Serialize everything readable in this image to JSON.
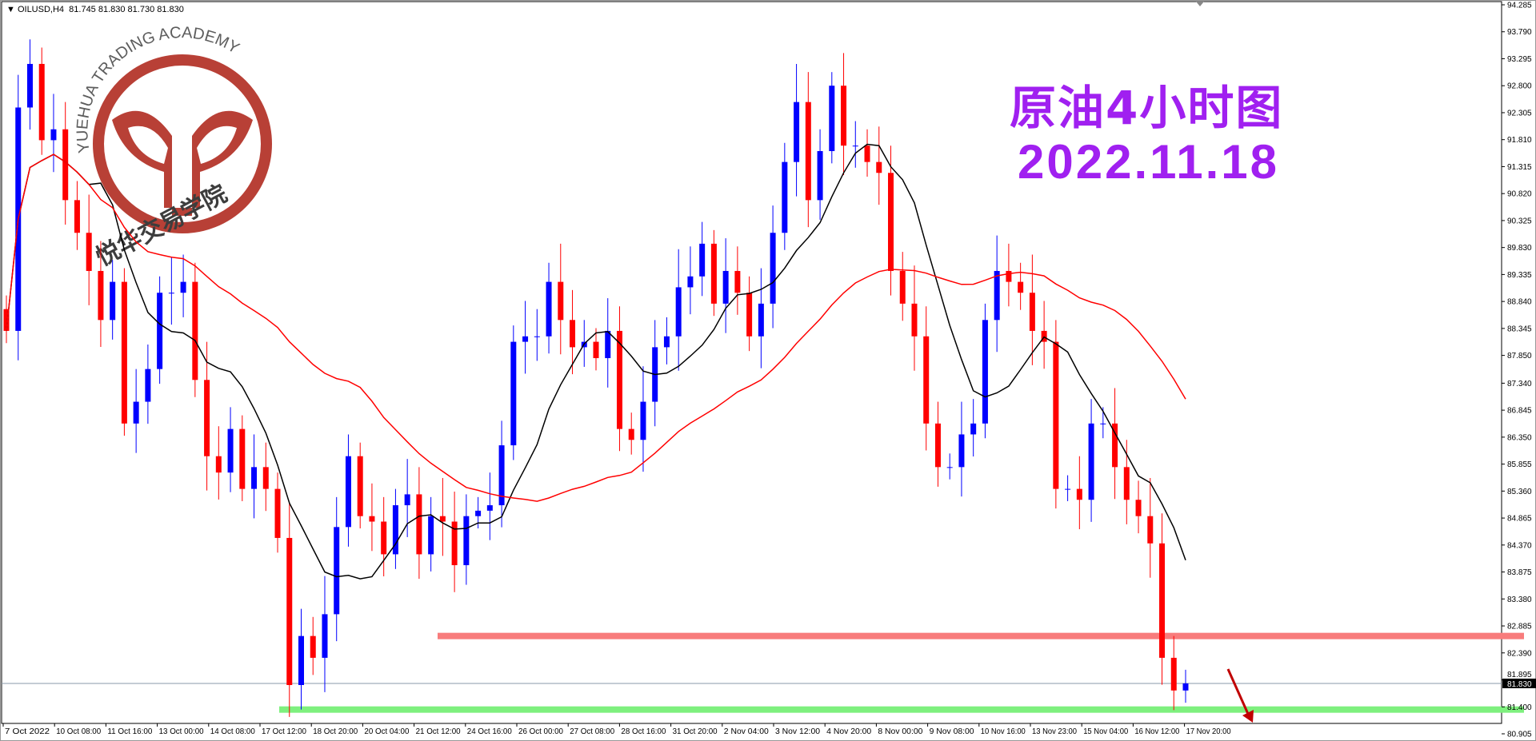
{
  "header": {
    "symbol": "OILUSD,H4",
    "ohlc": "81.745 81.830 81.730 81.830"
  },
  "overlay": {
    "title": "原油4小时图",
    "date": "2022.11.18"
  },
  "logo": {
    "text_en": "YUEHUA TRADING ACADEMY",
    "text_cn": "悦华交易学院",
    "color": "#b5362c"
  },
  "colors": {
    "bull": "#0000ff",
    "bear": "#ff0000",
    "fast_ma": "#000000",
    "slow_ma": "#ff0000",
    "resistance": "#f87c7c",
    "support": "#7ef07e",
    "accent": "#a020f0"
  },
  "chart_data": {
    "type": "candlestick",
    "symbol": "OILUSD",
    "timeframe": "H4",
    "ylim": [
      80.905,
      94.285
    ],
    "y_ticks": [
      "94.285",
      "93.790",
      "93.295",
      "92.800",
      "92.305",
      "91.810",
      "91.315",
      "90.820",
      "90.325",
      "89.830",
      "89.335",
      "88.840",
      "88.345",
      "87.850",
      "87.340",
      "86.845",
      "86.350",
      "85.855",
      "85.360",
      "84.865",
      "84.370",
      "83.875",
      "83.380",
      "82.885",
      "82.390",
      "81.895",
      "81.400",
      "80.905"
    ],
    "x_ticks": [
      "7 Oct 2022",
      "10 Oct 08:00",
      "11 Oct 16:00",
      "13 Oct 00:00",
      "14 Oct 08:00",
      "17 Oct 12:00",
      "18 Oct 20:00",
      "20 Oct 04:00",
      "21 Oct 12:00",
      "24 Oct 16:00",
      "26 Oct 00:00",
      "27 Oct 08:00",
      "28 Oct 16:00",
      "31 Oct 20:00",
      "2 Nov 04:00",
      "3 Nov 12:00",
      "4 Nov 20:00",
      "8 Nov 00:00",
      "9 Nov 08:00",
      "10 Nov 16:00",
      "13 Nov 23:00",
      "15 Nov 04:00",
      "16 Nov 12:00",
      "17 Nov 20:00"
    ],
    "closes": [
      88.3,
      92.4,
      93.2,
      91.8,
      92.0,
      90.7,
      90.1,
      89.4,
      88.5,
      89.2,
      86.6,
      87.0,
      87.6,
      89.0,
      89.0,
      89.2,
      87.4,
      86.0,
      85.7,
      86.5,
      85.4,
      85.8,
      85.4,
      84.5,
      81.8,
      82.7,
      82.3,
      83.1,
      84.7,
      86.0,
      84.9,
      84.8,
      84.2,
      85.1,
      85.3,
      84.2,
      84.9,
      84.8,
      84.0,
      84.9,
      85.0,
      85.1,
      86.2,
      88.1,
      88.2,
      88.2,
      89.2,
      88.5,
      88.0,
      88.1,
      87.8,
      88.3,
      86.5,
      86.3,
      87.0,
      88.0,
      88.2,
      89.1,
      89.3,
      89.9,
      88.8,
      89.4,
      89.0,
      88.2,
      88.8,
      90.1,
      91.4,
      92.5,
      90.7,
      91.6,
      92.8,
      91.7,
      91.7,
      91.4,
      91.2,
      89.4,
      88.8,
      88.2,
      86.6,
      85.8,
      85.8,
      86.4,
      86.6,
      88.5,
      89.4,
      89.2,
      89.0,
      88.3,
      88.1,
      85.4,
      85.4,
      85.2,
      86.6,
      86.6,
      85.8,
      85.2,
      84.9,
      84.4,
      82.3,
      81.7,
      81.83
    ],
    "current_price": "81.830",
    "resistance_level": 82.7,
    "support_level": 81.35,
    "fast_ma_period": 8,
    "slow_ma_period": 30,
    "annotation": "down-arrow"
  }
}
